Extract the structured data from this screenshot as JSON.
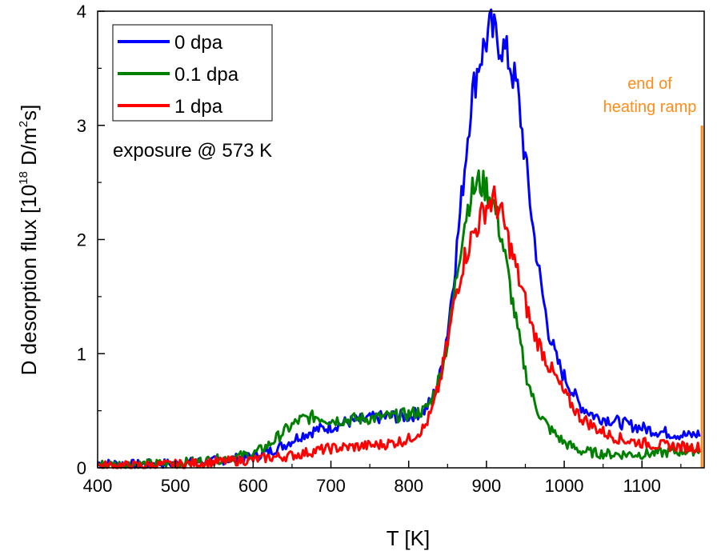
{
  "chart_data": {
    "type": "line",
    "xlabel": "T [K]",
    "ylabel": {
      "prefix": "D desorption flux [10",
      "exp1": "18",
      "mid": " D/m",
      "exp2": "2",
      "suffix": "s]"
    },
    "xlim": [
      400,
      1180
    ],
    "ylim": [
      0,
      4
    ],
    "xticks": [
      400,
      500,
      600,
      700,
      800,
      900,
      1000,
      1100
    ],
    "yticks": [
      0,
      1,
      2,
      3,
      4
    ],
    "legend_position": "top-left",
    "annotations": {
      "exposure": "exposure @ 573 K",
      "ramp_line1": "end of",
      "ramp_line2": "heating ramp",
      "ramp_x": 1177,
      "ramp_color": "#ff8c1a"
    },
    "series": [
      {
        "name": "0 dpa",
        "color": "#0000ff",
        "x": [
          400,
          450,
          500,
          550,
          600,
          620,
          640,
          660,
          680,
          700,
          720,
          740,
          760,
          780,
          800,
          820,
          830,
          840,
          850,
          860,
          870,
          880,
          890,
          900,
          905,
          910,
          920,
          930,
          940,
          950,
          960,
          970,
          980,
          990,
          1000,
          1020,
          1040,
          1060,
          1080,
          1100,
          1120,
          1140,
          1160,
          1175
        ],
        "y": [
          0.04,
          0.03,
          0.04,
          0.06,
          0.1,
          0.14,
          0.2,
          0.28,
          0.33,
          0.36,
          0.4,
          0.42,
          0.44,
          0.45,
          0.45,
          0.5,
          0.6,
          0.8,
          1.2,
          1.8,
          2.5,
          3.2,
          3.55,
          3.75,
          3.85,
          3.8,
          3.7,
          3.55,
          3.3,
          2.7,
          2.1,
          1.6,
          1.2,
          0.95,
          0.8,
          0.55,
          0.45,
          0.42,
          0.38,
          0.35,
          0.32,
          0.3,
          0.28,
          0.3
        ]
      },
      {
        "name": "0.1 dpa",
        "color": "#008000",
        "x": [
          400,
          450,
          500,
          550,
          600,
          620,
          640,
          660,
          680,
          700,
          720,
          740,
          760,
          780,
          800,
          820,
          830,
          840,
          850,
          860,
          870,
          880,
          890,
          900,
          910,
          920,
          930,
          940,
          950,
          960,
          970,
          980,
          1000,
          1020,
          1040,
          1060,
          1080,
          1100,
          1120,
          1140,
          1160,
          1175
        ],
        "y": [
          0.03,
          0.03,
          0.04,
          0.07,
          0.12,
          0.2,
          0.32,
          0.42,
          0.45,
          0.42,
          0.42,
          0.43,
          0.44,
          0.45,
          0.47,
          0.5,
          0.6,
          0.8,
          1.1,
          1.6,
          2.1,
          2.4,
          2.5,
          2.45,
          2.3,
          2.0,
          1.6,
          1.2,
          0.85,
          0.6,
          0.45,
          0.35,
          0.22,
          0.15,
          0.13,
          0.12,
          0.12,
          0.12,
          0.13,
          0.14,
          0.15,
          0.16
        ]
      },
      {
        "name": "1 dpa",
        "color": "#ff0000",
        "x": [
          400,
          450,
          500,
          550,
          600,
          620,
          640,
          660,
          680,
          700,
          720,
          740,
          760,
          780,
          800,
          820,
          830,
          840,
          850,
          860,
          870,
          880,
          890,
          900,
          910,
          920,
          930,
          940,
          950,
          960,
          970,
          980,
          1000,
          1020,
          1040,
          1060,
          1080,
          1100,
          1120,
          1140,
          1160,
          1175
        ],
        "y": [
          0.02,
          0.02,
          0.03,
          0.05,
          0.07,
          0.09,
          0.1,
          0.12,
          0.15,
          0.17,
          0.18,
          0.19,
          0.2,
          0.22,
          0.25,
          0.35,
          0.5,
          0.75,
          1.1,
          1.5,
          1.8,
          2.0,
          2.15,
          2.3,
          2.35,
          2.2,
          1.95,
          1.7,
          1.45,
          1.2,
          1.05,
          0.9,
          0.65,
          0.45,
          0.35,
          0.28,
          0.24,
          0.22,
          0.2,
          0.19,
          0.18,
          0.18
        ]
      }
    ]
  }
}
